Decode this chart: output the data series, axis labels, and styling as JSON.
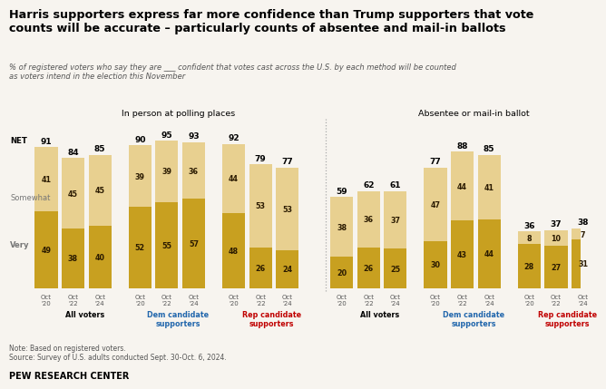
{
  "title_line1": "Harris supporters express far more confidence than Trump supporters that vote",
  "title_line2": "counts will be accurate – particularly counts of absentee and mail-in ballots",
  "subtitle": "% of registered voters who say they are ___ confident that votes cast across the U.S. by each method will be counted\nas voters intend in the election this November",
  "section_labels": [
    "In person at polling places",
    "Absentee or mail-in ballot"
  ],
  "x_tick_labels": [
    "Oct\n'20",
    "Oct\n'22",
    "Oct\n'24"
  ],
  "somewhat_label": "Somewhat",
  "very_label": "Very",
  "net_label": "NET",
  "color_very": "#c8a020",
  "color_somewhat": "#e8d090",
  "color_bg": "#f7f4ef",
  "group_names": [
    "All voters",
    "Dem candidate\nsupporters",
    "Rep candidate\nsupporters"
  ],
  "group_colors": [
    "#000000",
    "#2166ac",
    "#c00000"
  ],
  "in_person": {
    "all_voters": {
      "very": [
        49,
        38,
        40
      ],
      "somewhat": [
        41,
        45,
        45
      ],
      "net": [
        91,
        84,
        85
      ]
    },
    "dem_supporters": {
      "very": [
        52,
        55,
        57
      ],
      "somewhat": [
        39,
        39,
        36
      ],
      "net": [
        90,
        95,
        93
      ]
    },
    "rep_supporters": {
      "very": [
        48,
        26,
        24
      ],
      "somewhat": [
        44,
        53,
        53
      ],
      "net": [
        92,
        79,
        77
      ]
    }
  },
  "absentee": {
    "all_voters": {
      "very": [
        20,
        26,
        25
      ],
      "somewhat": [
        38,
        36,
        37
      ],
      "net": [
        59,
        62,
        61
      ]
    },
    "dem_supporters": {
      "very": [
        30,
        43,
        44
      ],
      "somewhat": [
        47,
        44,
        41
      ],
      "net": [
        77,
        88,
        85
      ]
    },
    "rep_supporters": {
      "very": [
        28,
        27,
        31
      ],
      "somewhat": [
        8,
        10,
        7
      ],
      "net": [
        36,
        37,
        38
      ]
    }
  },
  "note": "Note: Based on registered voters.",
  "source": "Source: Survey of U.S. adults conducted Sept. 30-Oct. 6, 2024.",
  "logo": "PEW RESEARCH CENTER"
}
